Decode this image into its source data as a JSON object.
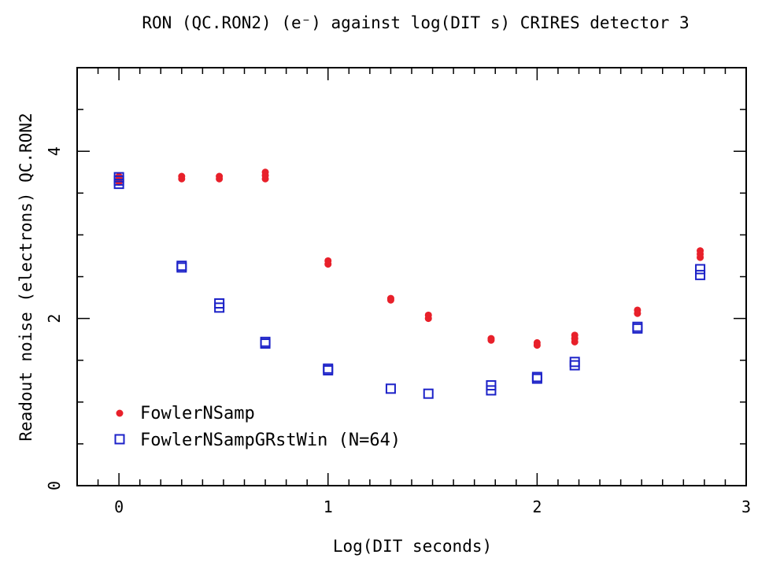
{
  "chart_data": {
    "type": "scatter",
    "title": "RON (QC.RON2) (e⁻) against log(DIT s) CRIRES detector 3",
    "xlabel": "Log(DIT seconds)",
    "ylabel": "Readout noise (electrons) QC.RON2",
    "xlim": [
      -0.2,
      3.0
    ],
    "ylim": [
      0,
      5
    ],
    "x_ticks": [
      0,
      1,
      2,
      3
    ],
    "x_tick_labels": [
      "0",
      "1",
      "2",
      "3"
    ],
    "y_ticks": [
      0,
      2,
      4
    ],
    "y_tick_labels": [
      "0",
      "2",
      "4"
    ],
    "grid": false,
    "legend_position": "bottom-left",
    "series": [
      {
        "name": "FowlerNSamp",
        "marker": "filled-circle",
        "color": "#e8202a",
        "points": [
          [
            0.0,
            3.67
          ],
          [
            0.0,
            3.63
          ],
          [
            0.0,
            3.7
          ],
          [
            0.3,
            3.7
          ],
          [
            0.3,
            3.67
          ],
          [
            0.48,
            3.7
          ],
          [
            0.48,
            3.67
          ],
          [
            0.7,
            3.75
          ],
          [
            0.7,
            3.71
          ],
          [
            0.7,
            3.67
          ],
          [
            1.0,
            2.69
          ],
          [
            1.0,
            2.65
          ],
          [
            1.3,
            2.24
          ],
          [
            1.3,
            2.22
          ],
          [
            1.48,
            2.04
          ],
          [
            1.48,
            2.0
          ],
          [
            1.78,
            1.76
          ],
          [
            1.78,
            1.74
          ],
          [
            2.0,
            1.71
          ],
          [
            2.0,
            1.68
          ],
          [
            2.18,
            1.8
          ],
          [
            2.18,
            1.76
          ],
          [
            2.18,
            1.72
          ],
          [
            2.48,
            2.1
          ],
          [
            2.48,
            2.06
          ],
          [
            2.78,
            2.81
          ],
          [
            2.78,
            2.77
          ],
          [
            2.78,
            2.73
          ]
        ]
      },
      {
        "name": "FowlerNSampGRstWin (N=64)",
        "marker": "open-square",
        "color": "#1c22c8",
        "points": [
          [
            0.0,
            3.69
          ],
          [
            0.0,
            3.65
          ],
          [
            0.0,
            3.61
          ],
          [
            0.3,
            2.63
          ],
          [
            0.3,
            2.61
          ],
          [
            0.48,
            2.18
          ],
          [
            0.48,
            2.13
          ],
          [
            0.7,
            1.72
          ],
          [
            0.7,
            1.7
          ],
          [
            1.0,
            1.4
          ],
          [
            1.0,
            1.38
          ],
          [
            1.3,
            1.16
          ],
          [
            1.48,
            1.1
          ],
          [
            1.78,
            1.2
          ],
          [
            1.78,
            1.14
          ],
          [
            2.0,
            1.3
          ],
          [
            2.0,
            1.28
          ],
          [
            2.18,
            1.48
          ],
          [
            2.18,
            1.44
          ],
          [
            2.48,
            1.9
          ],
          [
            2.48,
            1.88
          ],
          [
            2.78,
            2.59
          ],
          [
            2.78,
            2.52
          ]
        ]
      }
    ]
  }
}
